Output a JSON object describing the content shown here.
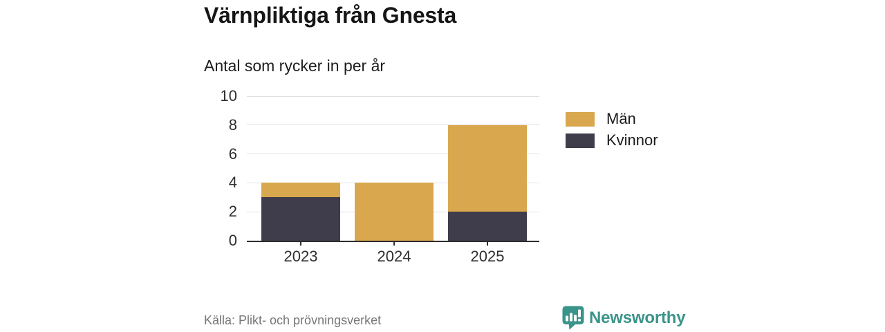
{
  "header": {
    "title": "Värnpliktiga från Gnesta",
    "subtitle": "Antal som rycker in per år"
  },
  "chart_data": {
    "type": "bar",
    "stacked": true,
    "title": "Värnpliktiga från Gnesta",
    "subtitle": "Antal som rycker in per år",
    "categories": [
      "2023",
      "2024",
      "2025"
    ],
    "series": [
      {
        "name": "Män",
        "color": "#d9a74e",
        "values": [
          1,
          4,
          6
        ]
      },
      {
        "name": "Kvinnor",
        "color": "#3f3c4b",
        "values": [
          3,
          0,
          2
        ]
      }
    ],
    "stack_order_bottom_to_top": [
      "Kvinnor",
      "Män"
    ],
    "totals": [
      4,
      4,
      8
    ],
    "xlabel": "",
    "ylabel": "",
    "ylim": [
      0,
      10
    ],
    "yticks": [
      0,
      2,
      4,
      6,
      8,
      10
    ],
    "grid": true,
    "legend_position": "right"
  },
  "footer": {
    "source": "Källa: Plikt- och prövningsverket",
    "brand": "Newsworthy"
  },
  "colors": {
    "men": "#d9a74e",
    "women": "#3f3c4b",
    "axis": "#2d2d2d",
    "gridline": "#e0e0e0",
    "brand_teal": "#3a948a",
    "source_gray": "#767676"
  }
}
